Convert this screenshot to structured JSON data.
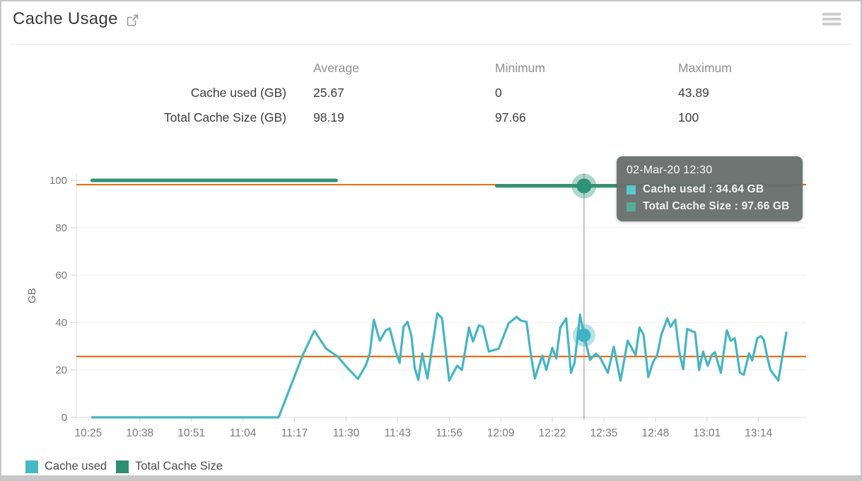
{
  "header": {
    "title": "Cache Usage",
    "external_link_icon": "open-in-new-window",
    "menu_icon": "hamburger-menu"
  },
  "stats": {
    "columns": [
      "Average",
      "Minimum",
      "Maximum"
    ],
    "rows": [
      {
        "label": "Cache used (GB)",
        "average": "25.67",
        "minimum": "0",
        "maximum": "43.89"
      },
      {
        "label": "Total Cache Size (GB)",
        "average": "98.19",
        "minimum": "97.66",
        "maximum": "100"
      }
    ]
  },
  "tooltip": {
    "title": "02-Mar-20 12:30",
    "rows": [
      {
        "series": "Cache used",
        "text": "Cache used : 34.64 GB",
        "color": "#5bc6ce"
      },
      {
        "series": "Total Cache Size",
        "text": "Total Cache Size : 97.66 GB",
        "color": "#55ab97"
      }
    ]
  },
  "legend": {
    "items": [
      {
        "label": "Cache used",
        "color": "#45b8c6"
      },
      {
        "label": "Total Cache Size",
        "color": "#2e8e72"
      }
    ]
  },
  "chart_data": {
    "type": "line",
    "title": "Cache Usage",
    "ylabel": "GB",
    "ylim": [
      0,
      100
    ],
    "yticks": [
      0,
      20,
      40,
      60,
      80,
      100
    ],
    "grid": "horizontal",
    "legend_position": "bottom-left",
    "t_domain": [
      -3,
      181
    ],
    "xticks": [
      [
        0,
        "10:25"
      ],
      [
        13,
        "10:38"
      ],
      [
        26,
        "10:51"
      ],
      [
        39,
        "11:04"
      ],
      [
        52,
        "11:17"
      ],
      [
        65,
        "11:30"
      ],
      [
        78,
        "11:43"
      ],
      [
        91,
        "11:56"
      ],
      [
        104,
        "12:09"
      ],
      [
        117,
        "12:22"
      ],
      [
        130,
        "12:35"
      ],
      [
        143,
        "12:48"
      ],
      [
        156,
        "13:01"
      ],
      [
        169,
        "13:14"
      ]
    ],
    "series": [
      {
        "name": "Cache used",
        "unit": "GB",
        "color": "#45b5c4",
        "points": [
          [
            1,
            0
          ],
          [
            8,
            0
          ],
          [
            16,
            0
          ],
          [
            24,
            0
          ],
          [
            32,
            0
          ],
          [
            40,
            0
          ],
          [
            48,
            0
          ],
          [
            51,
            13
          ],
          [
            54,
            26
          ],
          [
            57,
            36.5
          ],
          [
            60,
            29
          ],
          [
            63,
            25.5
          ],
          [
            65,
            21.5
          ],
          [
            68,
            16.2
          ],
          [
            70,
            22
          ],
          [
            71,
            27
          ],
          [
            72,
            41.2
          ],
          [
            73.5,
            32.3
          ],
          [
            75,
            36.7
          ],
          [
            76,
            37.5
          ],
          [
            77.5,
            27.8
          ],
          [
            78.5,
            23
          ],
          [
            79.5,
            38.2
          ],
          [
            80.5,
            40.3
          ],
          [
            81.5,
            34.3
          ],
          [
            82.3,
            20.9
          ],
          [
            83.2,
            15.8
          ],
          [
            84.2,
            26.9
          ],
          [
            85.5,
            16.4
          ],
          [
            88,
            43.89
          ],
          [
            89.2,
            41.8
          ],
          [
            91,
            15.5
          ],
          [
            93,
            21.8
          ],
          [
            94.2,
            20
          ],
          [
            96,
            37.9
          ],
          [
            97,
            32
          ],
          [
            98.5,
            38.8
          ],
          [
            99.5,
            38.2
          ],
          [
            101,
            27.8
          ],
          [
            103.5,
            29
          ],
          [
            106,
            39.7
          ],
          [
            108,
            42.4
          ],
          [
            109,
            40.9
          ],
          [
            110.5,
            40.3
          ],
          [
            111.5,
            27.5
          ],
          [
            112.6,
            16.4
          ],
          [
            113.6,
            21.8
          ],
          [
            114.5,
            26
          ],
          [
            115.5,
            20
          ],
          [
            117,
            29.3
          ],
          [
            118,
            24.8
          ],
          [
            119,
            37.9
          ],
          [
            120.5,
            41.8
          ],
          [
            121.7,
            18.8
          ],
          [
            122.6,
            23
          ],
          [
            124,
            43.3
          ],
          [
            125,
            34.64
          ],
          [
            126.5,
            24.2
          ],
          [
            128,
            26.9
          ],
          [
            129,
            25.4
          ],
          [
            131,
            18.8
          ],
          [
            132.5,
            29.8
          ],
          [
            134.2,
            15.5
          ],
          [
            136,
            32.3
          ],
          [
            138,
            26.3
          ],
          [
            139,
            37.9
          ],
          [
            140,
            34.9
          ],
          [
            141.2,
            17
          ],
          [
            142.4,
            23.3
          ],
          [
            143.4,
            26
          ],
          [
            144.5,
            34.9
          ],
          [
            146,
            41.8
          ],
          [
            146.8,
            38.2
          ],
          [
            148,
            41.2
          ],
          [
            149,
            27.8
          ],
          [
            150,
            20.3
          ],
          [
            151,
            37.3
          ],
          [
            153,
            35.8
          ],
          [
            154,
            20
          ],
          [
            155,
            27.8
          ],
          [
            156.2,
            21.8
          ],
          [
            157.2,
            26.3
          ],
          [
            158,
            27.5
          ],
          [
            159.5,
            18.8
          ],
          [
            161,
            36.7
          ],
          [
            162,
            32.3
          ],
          [
            163,
            33.4
          ],
          [
            164.3,
            18.8
          ],
          [
            165.3,
            18
          ],
          [
            166.6,
            27
          ],
          [
            167.4,
            24
          ],
          [
            168.7,
            33.4
          ],
          [
            169.6,
            34.3
          ],
          [
            170.3,
            32.8
          ],
          [
            171.3,
            24.8
          ],
          [
            172,
            20
          ],
          [
            174,
            15.5
          ],
          [
            176,
            35.8
          ]
        ]
      },
      {
        "name": "Total Cache Size",
        "unit": "GB",
        "color": "#2f9377",
        "segments": [
          [
            [
              1,
              100
            ],
            [
              62.5,
              100
            ]
          ],
          [
            [
              103,
              97.66
            ],
            [
              177,
              97.66
            ]
          ]
        ]
      }
    ],
    "average_lines": [
      {
        "series": "Cache used",
        "value": 25.67,
        "color": "#e8711a"
      },
      {
        "series": "Total Cache Size",
        "value": 98.19,
        "color": "#e8711a"
      }
    ],
    "crosshair_t": 125,
    "selected_points": [
      {
        "series": "Cache used",
        "t": 125,
        "value": 34.64,
        "color": "#3fb3c3"
      },
      {
        "series": "Total Cache Size",
        "t": 125,
        "value": 97.66,
        "color": "#2f9377"
      }
    ]
  }
}
